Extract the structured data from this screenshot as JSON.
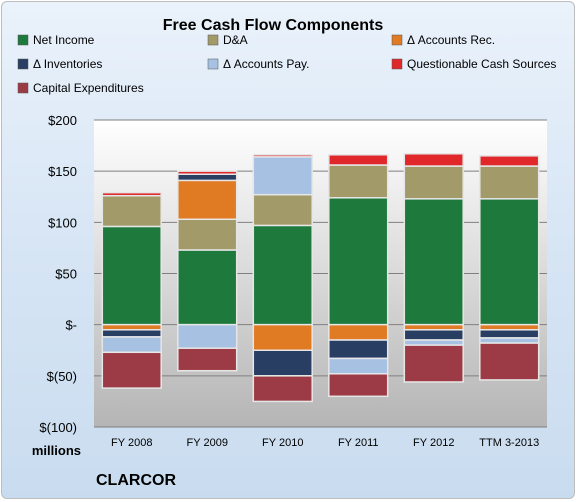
{
  "chart_data": {
    "type": "bar",
    "stacked": true,
    "title": "Free Cash Flow Components",
    "unit_label": "millions",
    "company": "CLARCOR",
    "categories": [
      "FY 2008",
      "FY 2009",
      "FY 2010",
      "FY 2011",
      "FY 2012",
      "TTM 3-2013"
    ],
    "ylim": [
      -100,
      200
    ],
    "yticks": [
      -100,
      -50,
      0,
      50,
      100,
      150,
      200
    ],
    "ytick_labels": [
      "$(100)",
      "$(50)",
      "$-",
      "$50",
      "$100",
      "$150",
      "$200"
    ],
    "grid": true,
    "legend_position": "top",
    "series": [
      {
        "name": "Net Income",
        "color": "#1e7a3c",
        "values": [
          96,
          73,
          97,
          124,
          123,
          123
        ]
      },
      {
        "name": "D&A",
        "color": "#a39a6a",
        "values": [
          30,
          30,
          30,
          32,
          32,
          32
        ]
      },
      {
        "name": "Δ Accounts Rec.",
        "color": "#e07b23",
        "values": [
          -5,
          38,
          -25,
          -15,
          -5,
          -5
        ]
      },
      {
        "name": "Δ Inventories",
        "color": "#283f63",
        "values": [
          -7,
          6,
          -25,
          -18,
          -10,
          -8
        ]
      },
      {
        "name": "Δ Accounts Pay.",
        "color": "#a7c1e3",
        "values": [
          -15,
          -23,
          37,
          -15,
          -5,
          -5
        ]
      },
      {
        "name": "Questionable Cash Sources",
        "color": "#e0282a",
        "values": [
          3,
          3,
          2,
          10,
          12,
          10
        ]
      },
      {
        "name": "Capital Expenditures",
        "color": "#9c3b45",
        "values": [
          -35,
          -22,
          -25,
          -22,
          -36,
          -36
        ]
      }
    ]
  }
}
